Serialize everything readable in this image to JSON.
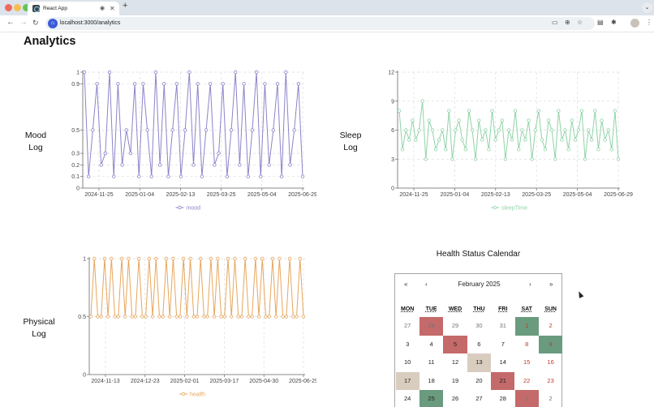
{
  "browser": {
    "tab_title": "React App",
    "url": "localhost:3000/analytics",
    "tab_audio_icon": "speaker-icon",
    "new_tab_label": "+",
    "nav_back": "←",
    "nav_forward": "→",
    "nav_reload": "C"
  },
  "page": {
    "title": "Analytics"
  },
  "charts": [
    {
      "id": "mood",
      "label_lines": [
        "Mood",
        "Log"
      ],
      "color": "#8b84c9",
      "legend": "mood",
      "y_ticks": [
        "1",
        "0.9",
        "0.5",
        "0.3",
        "0.2",
        "0.1",
        "0"
      ],
      "y_tick_values": [
        1,
        0.9,
        0.5,
        0.3,
        0.2,
        0.1,
        0
      ],
      "x_ticks": [
        "2024-11-25",
        "2025-01-04",
        "2025-02-13",
        "2025-03-25",
        "2025-05-04",
        "2025-06-29"
      ],
      "ylim": [
        0,
        1
      ],
      "values": [
        1,
        0.1,
        0.5,
        0.9,
        0.2,
        0.3,
        1,
        0.1,
        0.9,
        0.2,
        0.5,
        0.3,
        0.9,
        0.1,
        0.9,
        0.5,
        0.1,
        1,
        0.2,
        0.9,
        0.1,
        0.5,
        0.9,
        0.1,
        0.5,
        1,
        0.2,
        0.9,
        0.1,
        0.5,
        0.9,
        0.2,
        0.3,
        0.9,
        0.1,
        0.5,
        1,
        0.2,
        0.9,
        0.1,
        0.5,
        1,
        0.1,
        0.9,
        0.2,
        0.5,
        0.9,
        0.1,
        1,
        0.2,
        0.5,
        0.9,
        0.1
      ]
    },
    {
      "id": "sleep",
      "label_lines": [
        "Sleep",
        "Log"
      ],
      "color": "#8fd3a7",
      "legend": "sleepTime",
      "y_ticks": [
        "12",
        "9",
        "6",
        "3",
        "0"
      ],
      "y_tick_values": [
        12,
        9,
        6,
        3,
        0
      ],
      "x_ticks": [
        "2024-11-25",
        "2025-01-04",
        "2025-02-13",
        "2025-03-25",
        "2025-05-04",
        "2025-06-29"
      ],
      "ylim": [
        0,
        12
      ],
      "values": [
        8,
        4,
        6,
        5,
        7,
        5,
        6,
        9,
        3,
        7,
        6,
        4,
        5,
        6,
        4,
        8,
        3,
        6,
        7,
        5,
        4,
        8,
        6,
        3,
        7,
        5,
        6,
        4,
        8,
        5,
        6,
        7,
        3,
        6,
        5,
        8,
        4,
        6,
        5,
        7,
        3,
        6,
        8,
        5,
        4,
        7,
        6,
        3,
        8,
        5,
        6,
        4,
        7,
        5,
        6,
        8,
        3,
        6,
        5,
        8,
        4,
        7,
        5,
        6,
        4,
        8,
        3
      ]
    },
    {
      "id": "health",
      "label_lines": [
        "Physical",
        "Log"
      ],
      "color": "#e6a65d",
      "legend": "health",
      "y_ticks": [
        "1",
        "0.5",
        "0"
      ],
      "y_tick_values": [
        1,
        0.5,
        0
      ],
      "x_ticks": [
        "2024-11-13",
        "2024-12-23",
        "2025-02-01",
        "2025-03-17",
        "2025-04-30",
        "2025-06-29"
      ],
      "ylim": [
        0,
        1
      ],
      "values": [
        0.5,
        1,
        0.5,
        0.5,
        1,
        0.5,
        1,
        0.5,
        0.5,
        1,
        0.5,
        1,
        0.5,
        0.5,
        1,
        0.5,
        0.5,
        1,
        0.5,
        1,
        0.5,
        0.5,
        1,
        0.5,
        1,
        0.5,
        0.5,
        1,
        0.5,
        1,
        0.5,
        0.5,
        1,
        0.5,
        0.5,
        1,
        0.5,
        1,
        0.5,
        0.5,
        1,
        0.5,
        1,
        0.5,
        0.5,
        1,
        0.5,
        0.5,
        1,
        0.5,
        1,
        0.5,
        0.5,
        1,
        0.5,
        1,
        0.5,
        0.5,
        1,
        0.5,
        0.5,
        1,
        0.5
      ]
    }
  ],
  "calendar": {
    "title": "Health Status Calendar",
    "month_label": "February  2025",
    "nav": {
      "prev_year": "«",
      "prev_month": "‹",
      "next_month": "›",
      "next_year": "»"
    },
    "weekdays": [
      "MON",
      "TUE",
      "WED",
      "THU",
      "FRI",
      "SAT",
      "SUN"
    ],
    "status_colors": {
      "red": "#c46a6a",
      "green": "#6a9b7f",
      "beige": "#d9cdbf"
    },
    "weeks": [
      [
        {
          "d": "27",
          "o": true
        },
        {
          "d": "28",
          "o": true,
          "s": "red"
        },
        {
          "d": "29",
          "o": true
        },
        {
          "d": "30",
          "o": true
        },
        {
          "d": "31",
          "o": true
        },
        {
          "d": "1",
          "w": true,
          "s": "green"
        },
        {
          "d": "2",
          "w": true
        }
      ],
      [
        {
          "d": "3"
        },
        {
          "d": "4"
        },
        {
          "d": "5",
          "s": "red"
        },
        {
          "d": "6"
        },
        {
          "d": "7"
        },
        {
          "d": "8",
          "w": true
        },
        {
          "d": "9",
          "w": true,
          "s": "green"
        }
      ],
      [
        {
          "d": "10"
        },
        {
          "d": "11"
        },
        {
          "d": "12"
        },
        {
          "d": "13",
          "s": "beige"
        },
        {
          "d": "14"
        },
        {
          "d": "15",
          "w": true
        },
        {
          "d": "16",
          "w": true
        }
      ],
      [
        {
          "d": "17",
          "s": "beige"
        },
        {
          "d": "18"
        },
        {
          "d": "19"
        },
        {
          "d": "20"
        },
        {
          "d": "21",
          "s": "red"
        },
        {
          "d": "22",
          "w": true
        },
        {
          "d": "23",
          "w": true
        }
      ],
      [
        {
          "d": "24"
        },
        {
          "d": "25",
          "s": "green"
        },
        {
          "d": "26"
        },
        {
          "d": "27"
        },
        {
          "d": "28"
        },
        {
          "d": "1",
          "o": true,
          "s": "red"
        },
        {
          "d": "2",
          "o": true
        }
      ]
    ]
  }
}
